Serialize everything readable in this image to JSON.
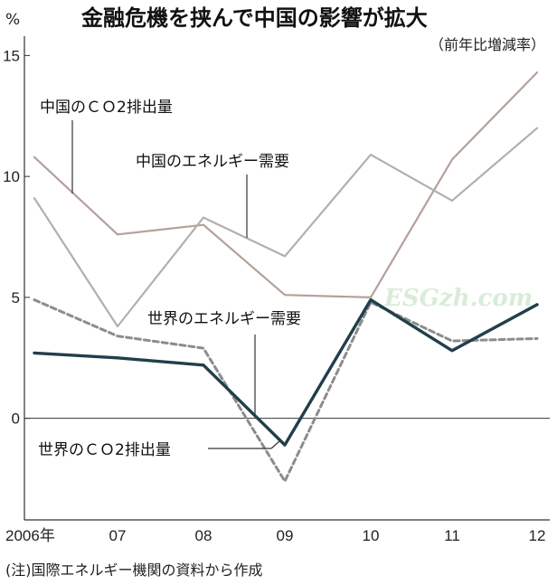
{
  "header": {
    "title": "金融危機を挟んで中国の影響が拡大",
    "subtitle": "（前年比増減率）",
    "unit": "%"
  },
  "footer": {
    "note": "(注)国際エネルギー機関の資料から作成"
  },
  "watermark": {
    "text": "ESGzh.com"
  },
  "colors": {
    "china_co2": "#b5a09a",
    "china_energy": "#b0b0b0",
    "world_co2": "#203f4b",
    "world_energy": "#8c8c8c",
    "axis": "#333333"
  },
  "chart_data": {
    "type": "line",
    "categories": [
      "2006年",
      "07",
      "08",
      "09",
      "10",
      "11",
      "12"
    ],
    "ylim": [
      -4.2,
      15.8
    ],
    "yticks": [
      {
        "value": 15,
        "label": "15"
      },
      {
        "value": 10,
        "label": "10"
      },
      {
        "value": 5,
        "label": "5"
      },
      {
        "value": 0,
        "label": "0"
      }
    ],
    "grid": false,
    "series": [
      {
        "name": "中国のＣＯ2排出量",
        "style": "solid-thin",
        "values": [
          10.8,
          7.6,
          8.0,
          5.1,
          5.0,
          10.7,
          14.3
        ]
      },
      {
        "name": "中国のエネルギー需要",
        "style": "solid-thin",
        "values": [
          9.1,
          3.8,
          8.3,
          6.7,
          10.9,
          9.0,
          12.0
        ]
      },
      {
        "name": "世界のエネルギー需要",
        "style": "dashed",
        "values": [
          4.9,
          3.4,
          2.9,
          -2.6,
          4.8,
          3.2,
          3.3
        ]
      },
      {
        "name": "世界のＣＯ2排出量",
        "style": "solid-thick",
        "values": [
          2.7,
          2.5,
          2.2,
          -1.1,
          4.9,
          2.8,
          4.7
        ]
      }
    ]
  }
}
